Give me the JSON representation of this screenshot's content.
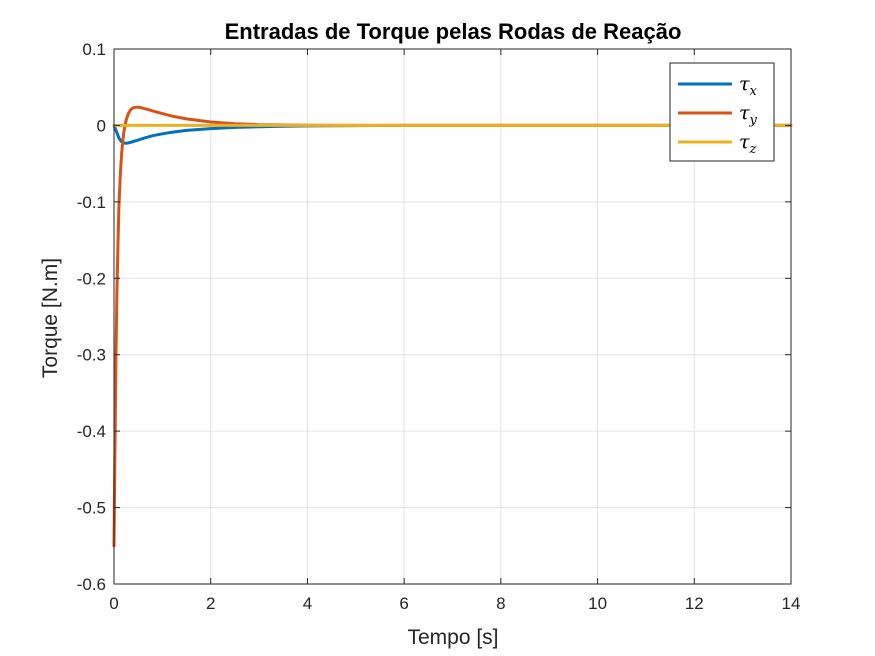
{
  "chart_data": {
    "type": "line",
    "title": "Entradas de Torque pelas Rodas de Reação",
    "xlabel": "Tempo [s]",
    "ylabel": "Torque [N.m]",
    "xlim": [
      0,
      14
    ],
    "ylim": [
      -0.6,
      0.1
    ],
    "xticks": [
      0,
      2,
      4,
      6,
      8,
      10,
      12,
      14
    ],
    "yticks": [
      -0.6,
      -0.5,
      -0.4,
      -0.3,
      -0.2,
      -0.1,
      0,
      0.1
    ],
    "xtick_labels": [
      "0",
      "2",
      "4",
      "6",
      "8",
      "10",
      "12",
      "14"
    ],
    "ytick_labels": [
      "-0.6",
      "-0.5",
      "-0.4",
      "-0.3",
      "-0.2",
      "-0.1",
      "0",
      "0.1"
    ],
    "grid": true,
    "legend_position": "top-right",
    "series": [
      {
        "name": "τ",
        "subscript": "x",
        "color": "#0072BD",
        "x": [
          0,
          0.05,
          0.1,
          0.15,
          0.2,
          0.25,
          0.3,
          0.4,
          0.5,
          0.6,
          0.8,
          1.0,
          1.2,
          1.5,
          2.0,
          2.5,
          3.0,
          3.5,
          4.0,
          5.0,
          6.0,
          8.0,
          10.0,
          12.0,
          14.0
        ],
        "y": [
          0,
          -0.008,
          -0.016,
          -0.021,
          -0.023,
          -0.0232,
          -0.0228,
          -0.021,
          -0.019,
          -0.017,
          -0.0135,
          -0.011,
          -0.0088,
          -0.0065,
          -0.0042,
          -0.0026,
          -0.0016,
          -0.001,
          -0.0006,
          -0.0002,
          0,
          0,
          0,
          0,
          0
        ]
      },
      {
        "name": "τ",
        "subscript": "y",
        "color": "#D95319",
        "x": [
          0,
          0.02,
          0.04,
          0.06,
          0.08,
          0.1,
          0.13,
          0.16,
          0.2,
          0.25,
          0.3,
          0.35,
          0.4,
          0.45,
          0.5,
          0.55,
          0.6,
          0.7,
          0.8,
          1.0,
          1.2,
          1.5,
          2.0,
          2.5,
          3.0,
          3.5,
          4.0,
          5.0,
          6.0,
          8.0,
          10.0,
          12.0,
          14.0
        ],
        "y": [
          -0.55,
          -0.42,
          -0.31,
          -0.22,
          -0.16,
          -0.11,
          -0.065,
          -0.035,
          -0.01,
          0.007,
          0.016,
          0.021,
          0.023,
          0.0238,
          0.0238,
          0.0233,
          0.0226,
          0.021,
          0.019,
          0.0155,
          0.0122,
          0.0085,
          0.0045,
          0.0022,
          0.001,
          0.0005,
          0.0002,
          0,
          0,
          0,
          0,
          0,
          0
        ]
      },
      {
        "name": "τ",
        "subscript": "z",
        "color": "#EDB120",
        "x": [
          0,
          14
        ],
        "y": [
          0,
          0
        ]
      }
    ]
  }
}
